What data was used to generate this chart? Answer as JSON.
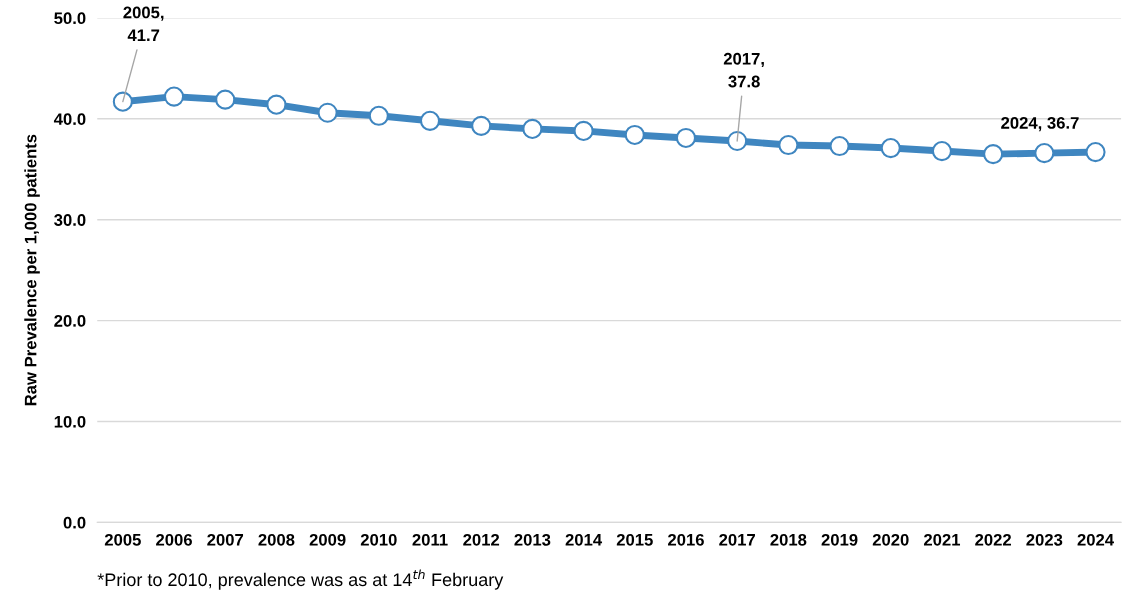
{
  "chart_data": {
    "type": "line",
    "ylabel": "Raw Prevalence per 1,000 patients",
    "categories": [
      "2005",
      "2006",
      "2007",
      "2008",
      "2009",
      "2010",
      "2011",
      "2012",
      "2013",
      "2014",
      "2015",
      "2016",
      "2017",
      "2018",
      "2019",
      "2020",
      "2021",
      "2022",
      "2023",
      "2024"
    ],
    "series": [
      {
        "color": "#3f86c0",
        "values": [
          41.7,
          42.2,
          41.9,
          41.4,
          40.6,
          40.3,
          39.8,
          39.3,
          39.0,
          38.8,
          38.4,
          38.1,
          37.8,
          37.4,
          37.3,
          37.1,
          36.8,
          36.5,
          36.6,
          36.7
        ]
      }
    ],
    "ylim": [
      0,
      50
    ],
    "yticks": [
      {
        "value": 0,
        "label": "0.0"
      },
      {
        "value": 10,
        "label": "10.0"
      },
      {
        "value": 20,
        "label": "20.0"
      },
      {
        "value": 30,
        "label": "30.0"
      },
      {
        "value": 40,
        "label": "40.0"
      },
      {
        "value": 50,
        "label": "50.0"
      }
    ],
    "grid": "y",
    "marker": "circle",
    "line_style": "solid",
    "legend": false,
    "annotations": [
      {
        "text": "2005,\n41.7",
        "x": "2005",
        "y": 41.7
      },
      {
        "text": "2017,\n37.8",
        "x": "2017",
        "y": 37.8
      },
      {
        "text": "2024, 36.7",
        "x": "2024",
        "y": 36.7
      },
      "*Prior to 2010, prevalence was as at 14$^{th}$ February"
    ]
  }
}
